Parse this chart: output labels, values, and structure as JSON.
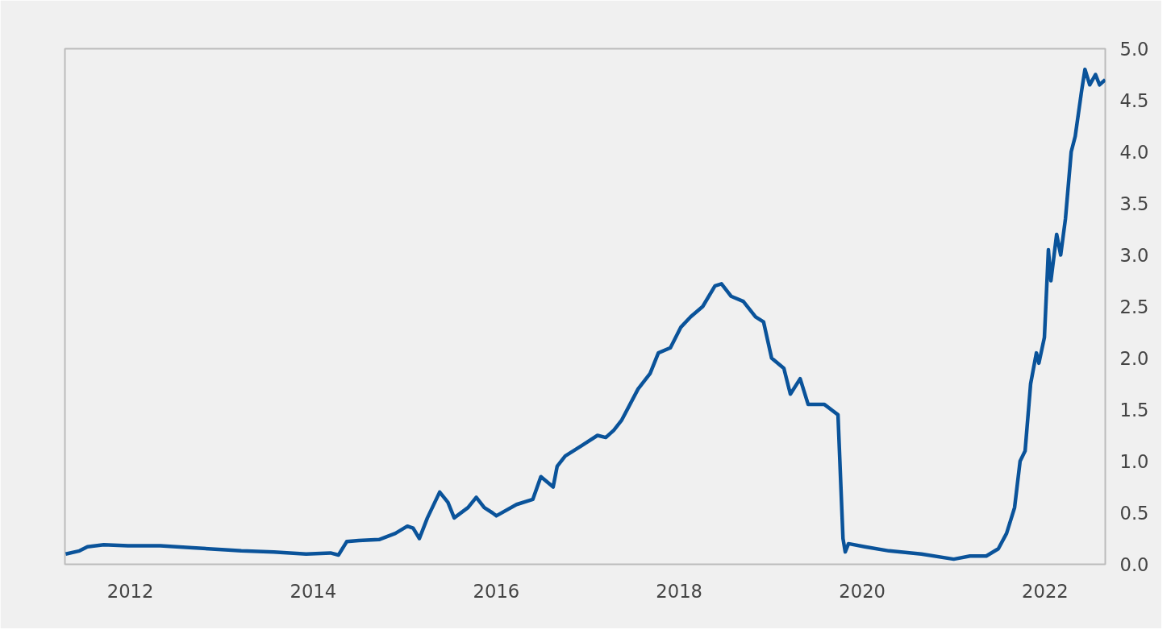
{
  "chart_data": {
    "type": "line",
    "x": [
      "2011-10-17",
      "2011-12-11",
      "2012-01-12",
      "2012-03-17",
      "2012-06-22",
      "2012-10-29",
      "2013-03-07",
      "2013-07-15",
      "2013-09-17",
      "2014-01-25",
      "2014-06-03",
      "2014-09-08",
      "2014-10-10",
      "2014-11-12",
      "2014-12-30",
      "2015-03-21",
      "2015-05-25",
      "2015-07-12",
      "2015-08-04",
      "2015-08-29",
      "2015-09-30",
      "2015-11-18",
      "2015-12-21",
      "2016-01-15",
      "2016-03-10",
      "2016-04-12",
      "2016-05-14",
      "2016-06-15",
      "2016-07-01",
      "2016-09-20",
      "2016-11-24",
      "2016-12-26",
      "2017-02-13",
      "2017-03-01",
      "2017-04-02",
      "2017-06-06",
      "2017-08-09",
      "2017-09-11",
      "2017-10-13",
      "2017-11-14",
      "2018-01-18",
      "2018-03-07",
      "2018-04-09",
      "2018-05-27",
      "2018-07-08",
      "2018-08-16",
      "2018-10-03",
      "2018-11-21",
      "2018-12-17",
      "2019-01-24",
      "2019-03-14",
      "2019-05-02",
      "2019-06-03",
      "2019-07-05",
      "2019-08-23",
      "2019-09-18",
      "2019-10-27",
      "2019-11-28",
      "2020-02-01",
      "2020-03-26",
      "2020-04-15",
      "2020-04-24",
      "2020-05-07",
      "2020-07-11",
      "2020-10-16",
      "2021-02-22",
      "2021-07-01",
      "2021-09-04",
      "2021-11-08",
      "2021-12-26",
      "2022-01-28",
      "2022-03-01",
      "2022-03-23",
      "2022-04-12",
      "2022-05-04",
      "2022-05-27",
      "2022-06-06",
      "2022-06-28",
      "2022-07-14",
      "2022-07-24",
      "2022-08-16",
      "2022-09-01",
      "2022-09-20",
      "2022-10-13",
      "2022-10-29",
      "2022-11-24",
      "2022-12-07",
      "2022-12-26",
      "2023-01-18",
      "2023-02-03",
      "2023-02-26"
    ],
    "series": [
      {
        "color": "#0a539a",
        "values": [
          0.1,
          0.13,
          0.17,
          0.19,
          0.18,
          0.18,
          0.16,
          0.14,
          0.13,
          0.12,
          0.1,
          0.11,
          0.09,
          0.22,
          0.23,
          0.24,
          0.3,
          0.37,
          0.35,
          0.25,
          0.45,
          0.7,
          0.6,
          0.45,
          0.55,
          0.65,
          0.55,
          0.5,
          0.47,
          0.58,
          0.63,
          0.85,
          0.75,
          0.95,
          1.05,
          1.15,
          1.25,
          1.23,
          1.3,
          1.4,
          1.7,
          1.85,
          2.05,
          2.1,
          2.3,
          2.4,
          2.5,
          2.7,
          2.72,
          2.6,
          2.55,
          2.4,
          2.35,
          2.0,
          1.9,
          1.65,
          1.8,
          1.55,
          1.55,
          1.45,
          0.25,
          0.12,
          0.2,
          0.17,
          0.13,
          0.1,
          0.05,
          0.08,
          0.08,
          0.15,
          0.3,
          0.55,
          1.0,
          1.1,
          1.75,
          2.05,
          1.95,
          2.2,
          3.05,
          2.75,
          3.2,
          3.0,
          3.35,
          4.0,
          4.15,
          4.6,
          4.8,
          4.65,
          4.75,
          4.65,
          4.7
        ]
      }
    ],
    "xlim": [
      "2011-10-14",
      "2023-02-26"
    ],
    "xticks": [
      {
        "value": "2012-07-01",
        "label": "2012"
      },
      {
        "value": "2014-07-01",
        "label": "2014"
      },
      {
        "value": "2016-07-01",
        "label": "2016"
      },
      {
        "value": "2018-07-01",
        "label": "2018"
      },
      {
        "value": "2020-07-01",
        "label": "2020"
      },
      {
        "value": "2022-07-01",
        "label": "2022"
      }
    ],
    "ylim": [
      0,
      5
    ],
    "yticks": [
      {
        "value": 0,
        "label": "0.0"
      },
      {
        "value": 0.5,
        "label": "0.5"
      },
      {
        "value": 1,
        "label": "1.0"
      },
      {
        "value": 1.5,
        "label": "1.5"
      },
      {
        "value": 2,
        "label": "2.0"
      },
      {
        "value": 2.5,
        "label": "2.5"
      },
      {
        "value": 3,
        "label": "3.0"
      },
      {
        "value": 3.5,
        "label": "3.5"
      },
      {
        "value": 4,
        "label": "4.0"
      },
      {
        "value": 4.5,
        "label": "4.5"
      },
      {
        "value": 5,
        "label": "5.0"
      }
    ],
    "grid": false,
    "marker": "none",
    "line_style": "solid"
  }
}
